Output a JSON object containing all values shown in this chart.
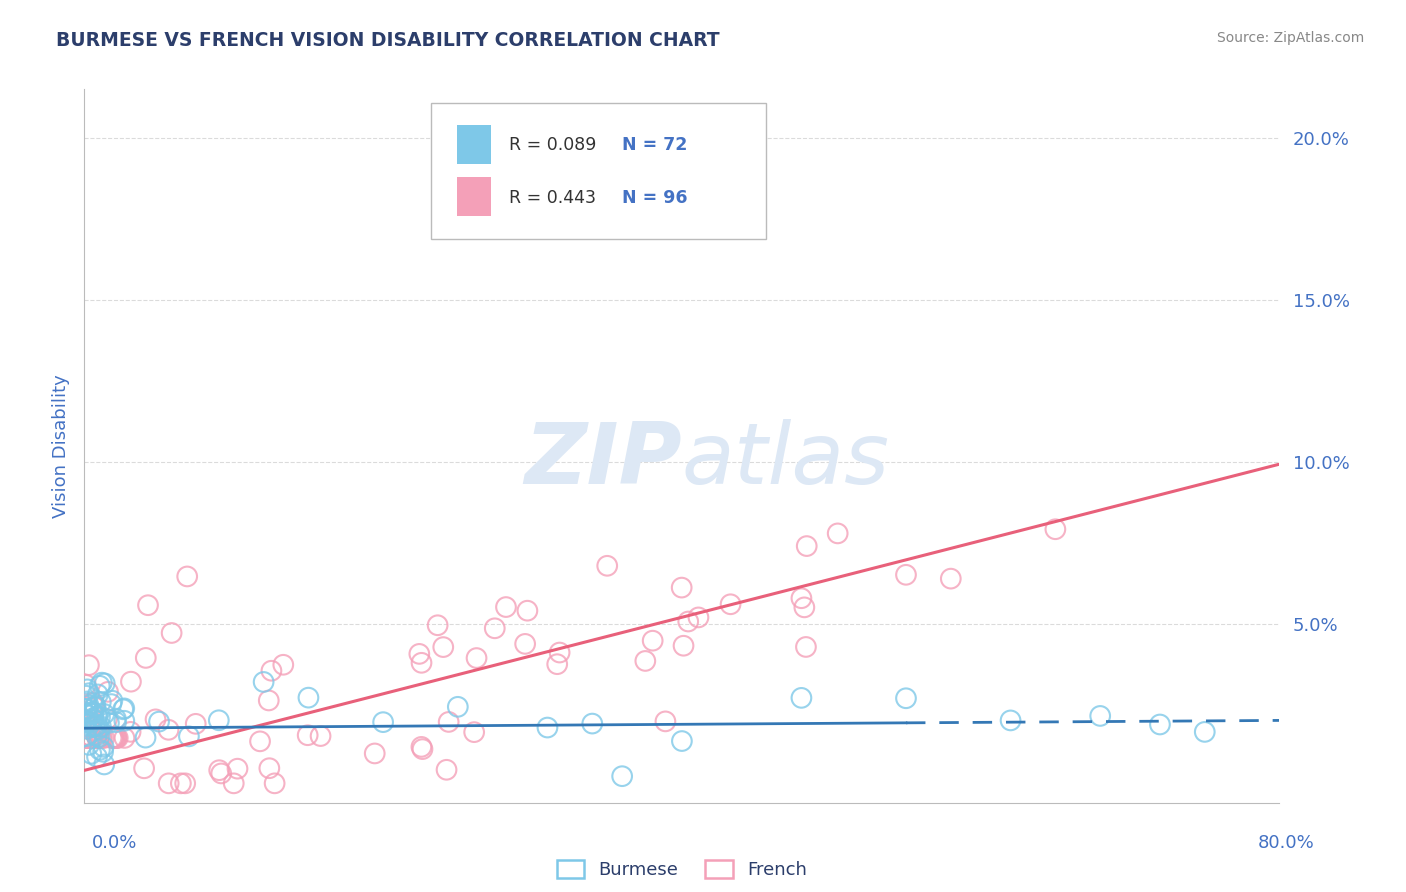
{
  "title": "BURMESE VS FRENCH VISION DISABILITY CORRELATION CHART",
  "source": "Source: ZipAtlas.com",
  "ylabel": "Vision Disability",
  "xlim": [
    0.0,
    0.8
  ],
  "ylim": [
    -0.005,
    0.215
  ],
  "yticks": [
    0.0,
    0.05,
    0.1,
    0.15,
    0.2
  ],
  "ytick_labels": [
    "",
    "5.0%",
    "10.0%",
    "15.0%",
    "20.0%"
  ],
  "burmese_R": 0.089,
  "burmese_N": 72,
  "french_R": 0.443,
  "french_N": 96,
  "burmese_color": "#7ec8e8",
  "french_color": "#f4a0b8",
  "burmese_line_color": "#3478b5",
  "french_line_color": "#e8607a",
  "title_color": "#2c3e6b",
  "axis_label_color": "#4472c4",
  "watermark_color": "#dde8f5",
  "background_color": "#ffffff",
  "grid_color": "#cccccc",
  "french_intercept": 0.005,
  "french_slope": 0.118,
  "burmese_intercept": 0.018,
  "burmese_slope": 0.003
}
